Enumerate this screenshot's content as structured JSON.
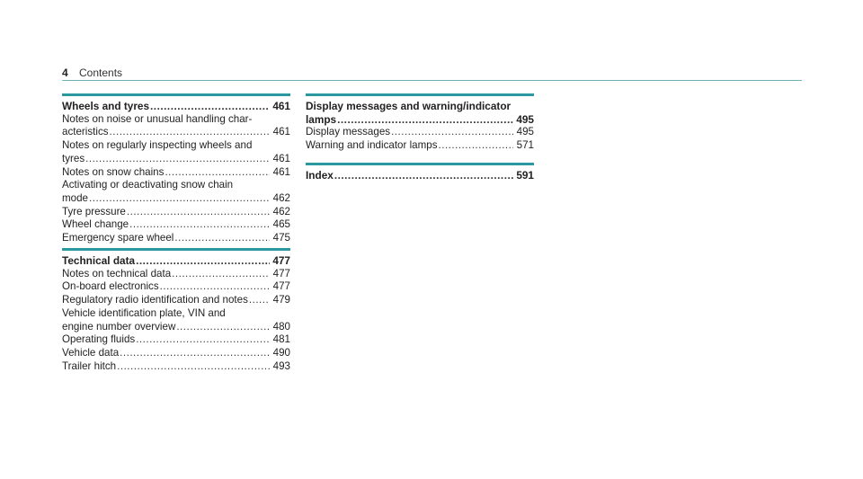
{
  "header": {
    "page_number": "4",
    "title": "Contents"
  },
  "sections": [
    {
      "id": "wheels",
      "title": "Wheels and tyres",
      "page": "461",
      "items": [
        {
          "lines": [
            "Notes on noise or unusual handling char-"
          ],
          "last": "acteristics",
          "page": "461"
        },
        {
          "lines": [
            "Notes on regularly inspecting wheels and"
          ],
          "last": "tyres",
          "page": "461"
        },
        {
          "lines": [],
          "last": "Notes on snow chains",
          "page": "461"
        },
        {
          "lines": [
            "Activating or deactivating snow chain"
          ],
          "last": "mode",
          "page": "462"
        },
        {
          "lines": [],
          "last": "Tyre pressure",
          "page": "462"
        },
        {
          "lines": [],
          "last": "Wheel change",
          "page": "465"
        },
        {
          "lines": [],
          "last": "Emergency spare wheel",
          "page": "475"
        }
      ]
    },
    {
      "id": "technical",
      "title": "Technical data",
      "page": "477",
      "items": [
        {
          "lines": [],
          "last": "Notes on technical data",
          "page": "477"
        },
        {
          "lines": [],
          "last": "On-board electronics",
          "page": "477"
        },
        {
          "lines": [],
          "last": "Regulatory radio identification and notes",
          "page": "479"
        },
        {
          "lines": [
            "Vehicle identification plate, VIN and"
          ],
          "last": "engine number overview",
          "page": "480"
        },
        {
          "lines": [],
          "last": "Operating fluids",
          "page": "481"
        },
        {
          "lines": [],
          "last": "Vehicle data",
          "page": "490"
        },
        {
          "lines": [],
          "last": "Trailer hitch",
          "page": "493"
        }
      ]
    },
    {
      "id": "display",
      "title_line1": "Display messages and warning/indicator",
      "title": "lamps",
      "page": "495",
      "items": [
        {
          "lines": [],
          "last": "Display messages",
          "page": "495"
        },
        {
          "lines": [],
          "last": "Warning and indicator lamps",
          "page": "571"
        }
      ]
    },
    {
      "id": "index",
      "title": "Index",
      "page": "591",
      "items": []
    }
  ]
}
